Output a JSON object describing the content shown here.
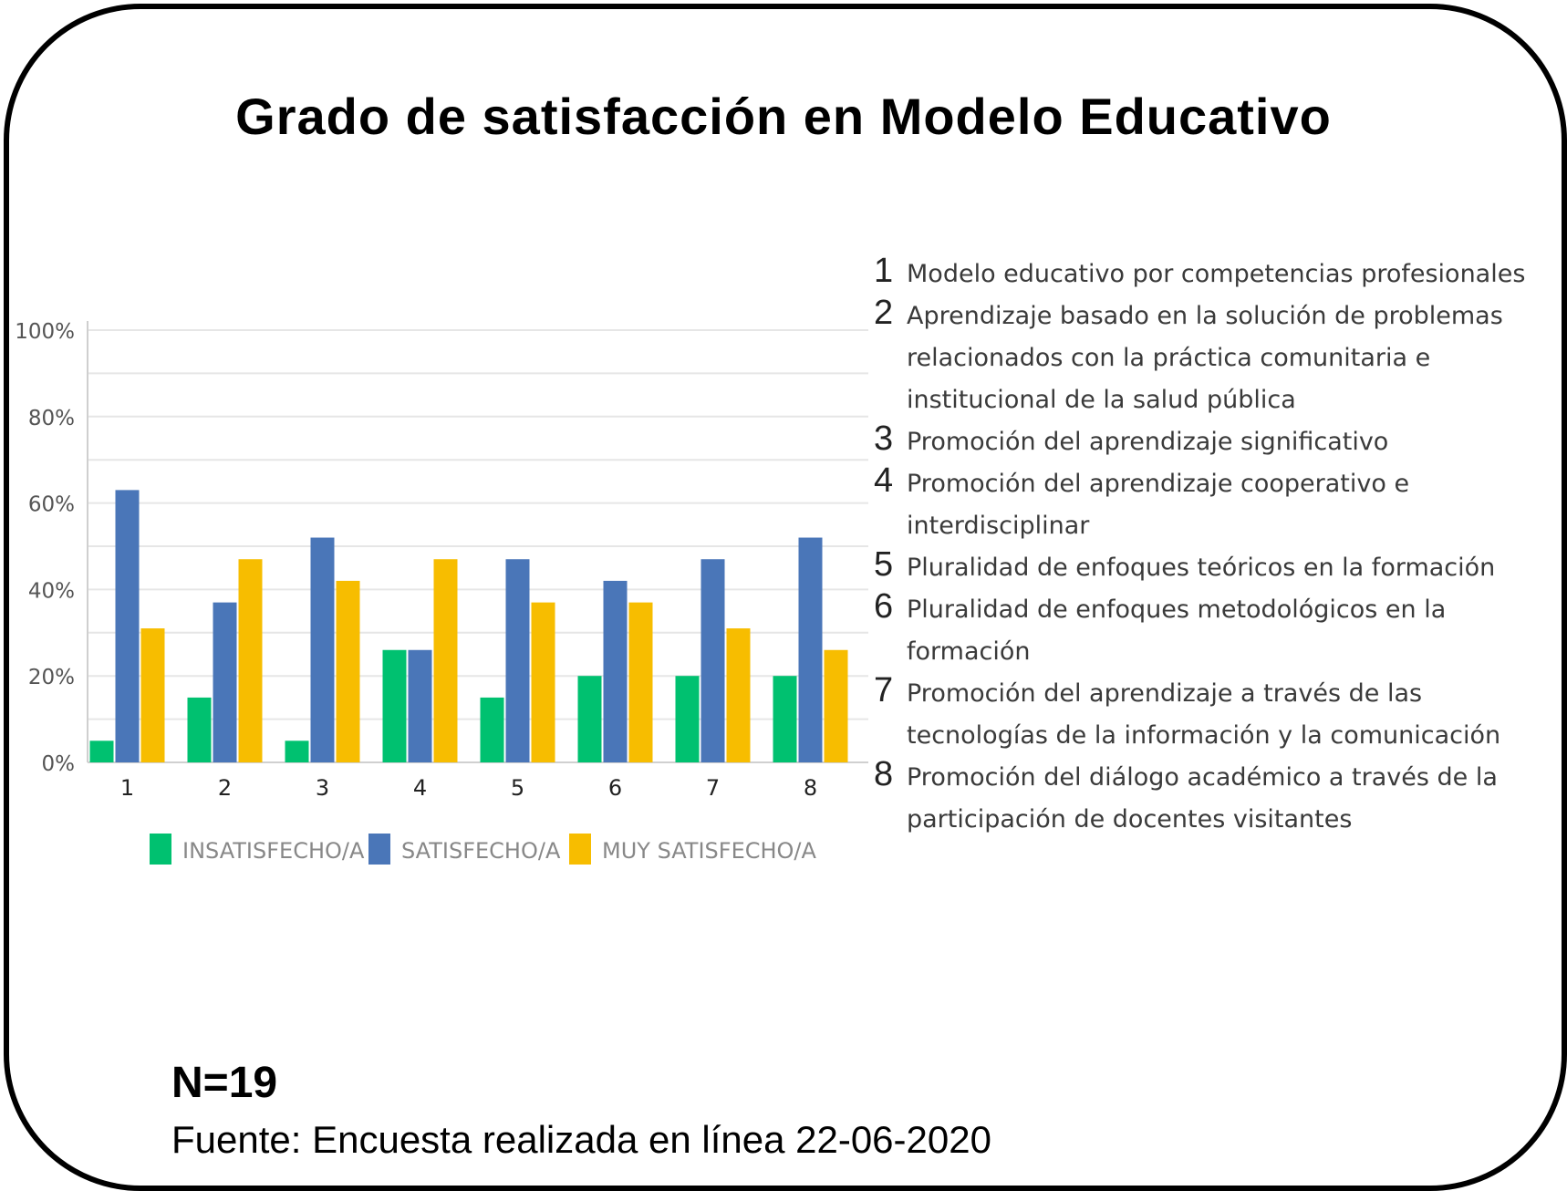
{
  "chart_data": {
    "type": "bar",
    "title": "Grado de satisfacción en Modelo Educativo",
    "categories": [
      "1",
      "2",
      "3",
      "4",
      "5",
      "6",
      "7",
      "8"
    ],
    "series": [
      {
        "name": "INSATISFECHO/A",
        "color": "#00c170",
        "values": [
          5,
          15,
          5,
          26,
          15,
          20,
          20,
          20
        ]
      },
      {
        "name": "SATISFECHO/A",
        "color": "#4a76b8",
        "values": [
          63,
          37,
          52,
          26,
          47,
          42,
          47,
          52
        ]
      },
      {
        "name": "MUY SATISFECHO/A",
        "color": "#f7bd00",
        "values": [
          31,
          47,
          42,
          47,
          37,
          37,
          31,
          26
        ]
      }
    ],
    "yticks": [
      "0%",
      "20%",
      "40%",
      "60%",
      "80%",
      "100%"
    ],
    "ylim": [
      0,
      100
    ],
    "xlabel": "",
    "ylabel": "",
    "grid": true,
    "legend_position": "bottom"
  },
  "item_legend": [
    {
      "num": "1",
      "text": "Modelo educativo por competencias profesionales"
    },
    {
      "num": "2",
      "text": "Aprendizaje basado en la solución de problemas relacionados con la práctica comunitaria e institucional de la salud pública"
    },
    {
      "num": "3",
      "text": "Promoción del aprendizaje significativo"
    },
    {
      "num": "4",
      "text": "Promoción del aprendizaje cooperativo e interdisciplinar"
    },
    {
      "num": "5",
      "text": "Pluralidad de enfoques teóricos en la formación"
    },
    {
      "num": "6",
      "text": "Pluralidad de enfoques metodológicos en la formación"
    },
    {
      "num": "7",
      "text": "Promoción del aprendizaje a través de las tecnologías de la información y la comunicación"
    },
    {
      "num": "8",
      "text": "Promoción del diálogo académico a través de la participación de docentes visitantes"
    }
  ],
  "sample_size": "N=19",
  "source": "Fuente: Encuesta realizada en línea 22-06-2020"
}
